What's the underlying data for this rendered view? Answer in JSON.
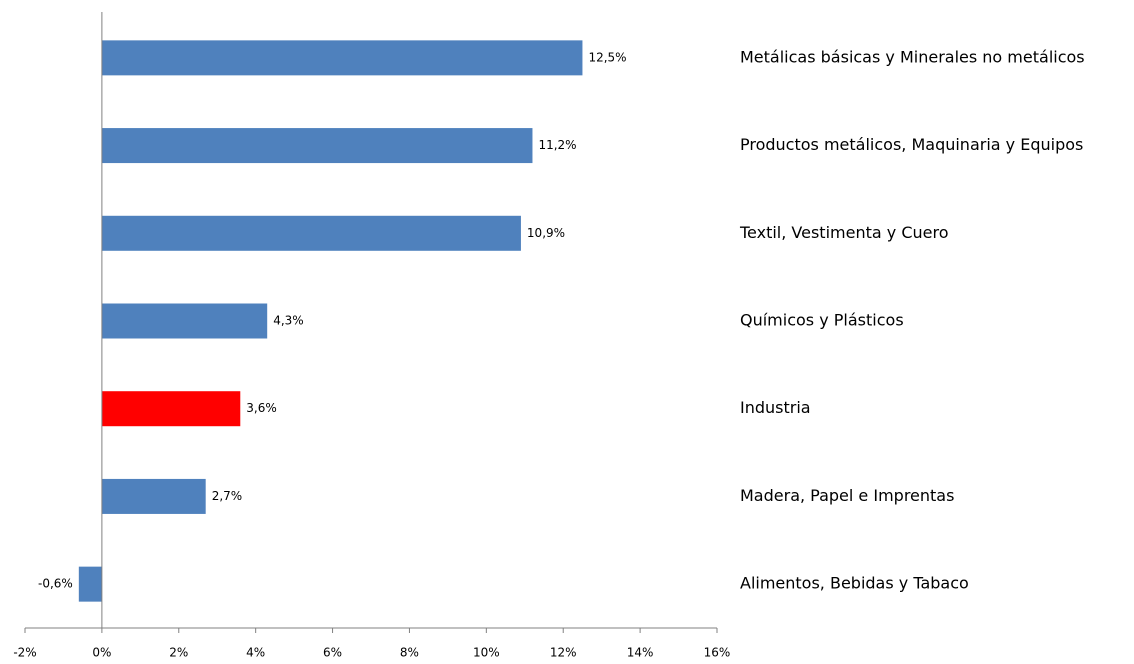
{
  "chart_data": {
    "type": "hbar",
    "categories": [
      "Metálicas básicas y Minerales no metálicos",
      "Productos metálicos, Maquinaria y Equipos",
      "Textil, Vestimenta y Cuero",
      "Químicos y Plásticos",
      "Industria",
      "Madera, Papel e Imprentas",
      "Alimentos, Bebidas y Tabaco"
    ],
    "values": [
      12.5,
      11.2,
      10.9,
      4.3,
      3.6,
      2.7,
      -0.6
    ],
    "value_labels": [
      "12,5%",
      "11,2%",
      "10,9%",
      "4,3%",
      "3,6%",
      "2,7%",
      "-0,6%"
    ],
    "colors": [
      "#4f81bd",
      "#4f81bd",
      "#4f81bd",
      "#4f81bd",
      "#ff0000",
      "#4f81bd",
      "#4f81bd"
    ],
    "xlim": [
      -2,
      16
    ],
    "xticks": [
      {
        "value": -2,
        "label": "-2%"
      },
      {
        "value": 0,
        "label": "0%"
      },
      {
        "value": 2,
        "label": "2%"
      },
      {
        "value": 4,
        "label": "4%"
      },
      {
        "value": 6,
        "label": "6%"
      },
      {
        "value": 8,
        "label": "8%"
      },
      {
        "value": 10,
        "label": "10%"
      },
      {
        "value": 12,
        "label": "12%"
      },
      {
        "value": 14,
        "label": "14%"
      },
      {
        "value": 16,
        "label": "16%"
      }
    ],
    "grid": false
  }
}
